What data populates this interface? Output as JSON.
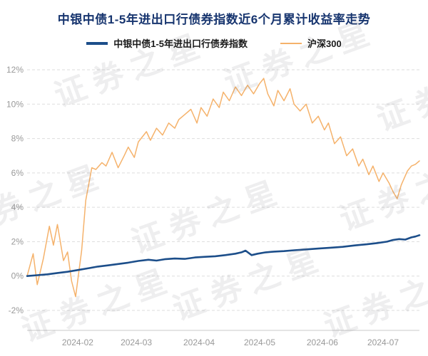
{
  "title": "中银中债1-5年进出口行债券指数近6个月累计收益率走势",
  "watermark": "证券之星",
  "colors": {
    "title": "#17356f",
    "fund_line": "#1c4e8a",
    "benchmark_line": "#f5b26b",
    "gridline": "#dddddd",
    "axis_text": "#999999"
  },
  "chart_data": {
    "type": "line",
    "title": "中银中债1-5年进出口行债券指数近6个月累计收益率走势",
    "xlabel": "",
    "ylabel": "",
    "grid": "dashed-horizontal",
    "legend_position": "top",
    "ylim": [
      -2,
      12
    ],
    "yticks": [
      -2,
      0,
      2,
      4,
      6,
      8,
      10,
      12
    ],
    "ytick_suffix": "%",
    "x_range": [
      "2024-01-07",
      "2024-07-19"
    ],
    "xticks": [
      {
        "label": "2024-02",
        "date": "2024-02-01"
      },
      {
        "label": "2024-03",
        "date": "2024-03-01"
      },
      {
        "label": "2024-04",
        "date": "2024-04-01"
      },
      {
        "label": "2024-05",
        "date": "2024-05-01"
      },
      {
        "label": "2024-06",
        "date": "2024-06-01"
      },
      {
        "label": "2024-07",
        "date": "2024-07-01"
      }
    ],
    "series": [
      {
        "name": "中银中债1-5年进出口行债券指数",
        "color": "#1c4e8a",
        "x": [
          "2024-01-07",
          "2024-01-12",
          "2024-01-17",
          "2024-01-22",
          "2024-01-27",
          "2024-02-01",
          "2024-02-06",
          "2024-02-11",
          "2024-02-16",
          "2024-02-21",
          "2024-02-26",
          "2024-03-02",
          "2024-03-07",
          "2024-03-11",
          "2024-03-15",
          "2024-03-20",
          "2024-03-25",
          "2024-03-30",
          "2024-04-04",
          "2024-04-09",
          "2024-04-14",
          "2024-04-19",
          "2024-04-22",
          "2024-04-24",
          "2024-04-27",
          "2024-04-30",
          "2024-05-04",
          "2024-05-08",
          "2024-05-13",
          "2024-05-18",
          "2024-05-24",
          "2024-05-30",
          "2024-06-05",
          "2024-06-11",
          "2024-06-17",
          "2024-06-23",
          "2024-06-28",
          "2024-07-03",
          "2024-07-06",
          "2024-07-09",
          "2024-07-12",
          "2024-07-15",
          "2024-07-17",
          "2024-07-19"
        ],
        "y": [
          0.0,
          0.05,
          0.1,
          0.18,
          0.25,
          0.35,
          0.45,
          0.55,
          0.62,
          0.7,
          0.78,
          0.88,
          0.95,
          0.9,
          0.98,
          1.02,
          1.0,
          1.08,
          1.12,
          1.15,
          1.22,
          1.3,
          1.38,
          1.48,
          1.22,
          1.3,
          1.38,
          1.42,
          1.45,
          1.5,
          1.55,
          1.6,
          1.65,
          1.7,
          1.78,
          1.85,
          1.92,
          2.0,
          2.1,
          2.15,
          2.12,
          2.25,
          2.3,
          2.38
        ]
      },
      {
        "name": "沪深300",
        "color": "#f5b26b",
        "x": [
          "2024-01-07",
          "2024-01-10",
          "2024-01-12",
          "2024-01-15",
          "2024-01-18",
          "2024-01-20",
          "2024-01-22",
          "2024-01-25",
          "2024-01-27",
          "2024-01-29",
          "2024-01-31",
          "2024-02-03",
          "2024-02-05",
          "2024-02-08",
          "2024-02-10",
          "2024-02-13",
          "2024-02-15",
          "2024-02-18",
          "2024-02-21",
          "2024-02-24",
          "2024-02-26",
          "2024-02-29",
          "2024-03-02",
          "2024-03-06",
          "2024-03-08",
          "2024-03-11",
          "2024-03-14",
          "2024-03-17",
          "2024-03-20",
          "2024-03-22",
          "2024-03-25",
          "2024-03-28",
          "2024-03-31",
          "2024-04-02",
          "2024-04-05",
          "2024-04-08",
          "2024-04-11",
          "2024-04-13",
          "2024-04-16",
          "2024-04-19",
          "2024-04-22",
          "2024-04-25",
          "2024-04-28",
          "2024-05-01",
          "2024-05-03",
          "2024-05-05",
          "2024-05-08",
          "2024-05-10",
          "2024-05-13",
          "2024-05-16",
          "2024-05-18",
          "2024-05-21",
          "2024-05-24",
          "2024-05-27",
          "2024-05-30",
          "2024-06-02",
          "2024-06-04",
          "2024-06-07",
          "2024-06-10",
          "2024-06-13",
          "2024-06-16",
          "2024-06-19",
          "2024-06-21",
          "2024-06-24",
          "2024-06-26",
          "2024-06-29",
          "2024-07-01",
          "2024-07-04",
          "2024-07-06",
          "2024-07-08",
          "2024-07-10",
          "2024-07-13",
          "2024-07-15",
          "2024-07-17",
          "2024-07-19"
        ],
        "y": [
          0.0,
          1.3,
          -0.5,
          1.0,
          2.9,
          1.8,
          3.0,
          0.9,
          1.4,
          -0.3,
          -1.2,
          1.5,
          4.4,
          6.3,
          6.2,
          6.6,
          6.4,
          7.2,
          6.3,
          7.0,
          7.5,
          6.9,
          7.8,
          8.4,
          7.9,
          8.6,
          8.2,
          8.9,
          8.6,
          9.1,
          9.4,
          9.7,
          8.9,
          9.8,
          9.3,
          10.3,
          9.8,
          10.7,
          10.2,
          11.0,
          10.5,
          11.1,
          10.6,
          11.2,
          11.5,
          10.6,
          9.9,
          10.8,
          10.2,
          10.9,
          10.0,
          9.6,
          10.0,
          8.9,
          9.3,
          8.5,
          8.9,
          7.7,
          8.1,
          7.0,
          7.4,
          6.4,
          6.8,
          5.9,
          6.4,
          5.5,
          6.0,
          5.4,
          4.9,
          4.5,
          5.3,
          6.1,
          6.4,
          6.5,
          6.7
        ]
      }
    ]
  }
}
